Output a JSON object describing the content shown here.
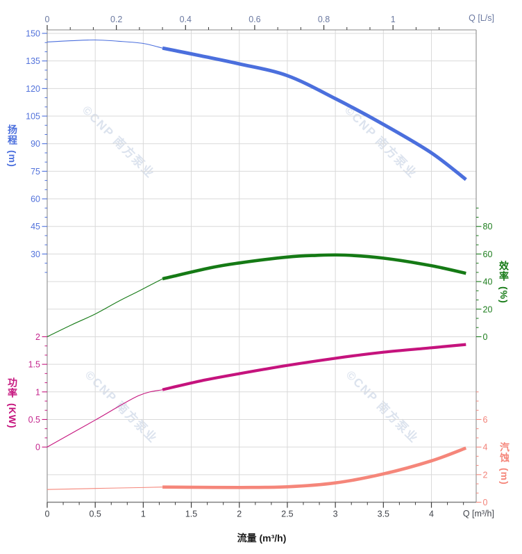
{
  "watermark": {
    "text": "©CNP 南方泵业",
    "color": "#dce3ee"
  },
  "chart_data": {
    "type": "line",
    "title": "",
    "grid": true,
    "x_axis_bottom": {
      "label": "流量 (m³/h)",
      "unit_label": "Q [m³/h]",
      "majors": [
        0,
        0.5,
        1,
        1.5,
        2,
        2.5,
        3,
        3.5,
        4
      ],
      "color": "#40434a",
      "range": [
        0,
        4.466
      ]
    },
    "x_axis_top": {
      "unit_label": "Q [L/s]",
      "majors": [
        0,
        0.2,
        0.4,
        0.6,
        0.8,
        1
      ],
      "color": "#6a78a0",
      "range": [
        0,
        1.2405
      ]
    },
    "y_axes": [
      {
        "id": "head",
        "title": "扬程",
        "unit": "(m)",
        "color": "#4b6fdd",
        "label_color": "#5272db",
        "side": "left",
        "majors": [
          150,
          135,
          120,
          105,
          90,
          75,
          60,
          45,
          30
        ],
        "extra_minor_after": 2
      },
      {
        "id": "eff",
        "title": "效率",
        "unit": "(%)",
        "color": "#157a15",
        "label_color": "#1d7d1d",
        "side": "right",
        "majors": [
          80,
          60,
          40,
          20,
          0
        ],
        "extra_minor_before": 2
      },
      {
        "id": "power",
        "title": "功率",
        "unit": "(KW)",
        "color": "#c5137d",
        "label_color": "#c4258d",
        "side": "left",
        "majors": [
          2,
          1.5,
          1,
          0.5,
          0
        ]
      },
      {
        "id": "npsh",
        "title": "汽蚀",
        "unit": "(m)",
        "color": "#f5867a",
        "label_color": "#f28279",
        "side": "right",
        "majors": [
          6,
          4,
          2,
          0
        ],
        "extra_minor_before": 3
      }
    ],
    "series": [
      {
        "name": "head-curve",
        "axis": "head",
        "color": "#4b6fdd",
        "bold_from": 1.2,
        "points": [
          [
            0,
            145.3
          ],
          [
            0.25,
            146.0
          ],
          [
            0.5,
            146.4
          ],
          [
            0.75,
            145.7
          ],
          [
            1.0,
            144.5
          ],
          [
            1.2,
            142.0
          ],
          [
            1.6,
            137.8
          ],
          [
            2.0,
            133.4
          ],
          [
            2.5,
            127.0
          ],
          [
            3.0,
            114.5
          ],
          [
            3.5,
            100.5
          ],
          [
            4.0,
            85.0
          ],
          [
            4.36,
            70.5
          ]
        ]
      },
      {
        "name": "efficiency-curve",
        "axis": "eff",
        "color": "#157a15",
        "bold_from": 1.2,
        "points": [
          [
            0,
            0
          ],
          [
            0.25,
            8.5
          ],
          [
            0.5,
            16.5
          ],
          [
            0.75,
            26
          ],
          [
            0.95,
            33
          ],
          [
            1.2,
            42
          ],
          [
            1.7,
            50
          ],
          [
            2.0,
            53.5
          ],
          [
            2.5,
            57.8
          ],
          [
            2.8,
            59
          ],
          [
            3.1,
            59.2
          ],
          [
            3.5,
            57
          ],
          [
            4.0,
            51.5
          ],
          [
            4.36,
            46
          ]
        ]
      },
      {
        "name": "power-curve",
        "axis": "power",
        "color": "#c5137d",
        "bold_from": 1.2,
        "points": [
          [
            0,
            0
          ],
          [
            0.5,
            0.49
          ],
          [
            0.95,
            0.93
          ],
          [
            1.2,
            1.04
          ],
          [
            1.6,
            1.2
          ],
          [
            2.0,
            1.33
          ],
          [
            2.5,
            1.48
          ],
          [
            3.0,
            1.61
          ],
          [
            3.5,
            1.72
          ],
          [
            4.0,
            1.8
          ],
          [
            4.36,
            1.86
          ]
        ]
      },
      {
        "name": "npsh-curve",
        "axis": "npsh",
        "color": "#f5867a",
        "bold_from": 1.2,
        "points": [
          [
            0,
            0.92
          ],
          [
            0.5,
            1.0
          ],
          [
            0.95,
            1.06
          ],
          [
            1.2,
            1.1
          ],
          [
            1.6,
            1.08
          ],
          [
            2.0,
            1.07
          ],
          [
            2.5,
            1.12
          ],
          [
            3.0,
            1.4
          ],
          [
            3.5,
            2.05
          ],
          [
            4.0,
            3.0
          ],
          [
            4.36,
            3.93
          ]
        ]
      }
    ]
  }
}
